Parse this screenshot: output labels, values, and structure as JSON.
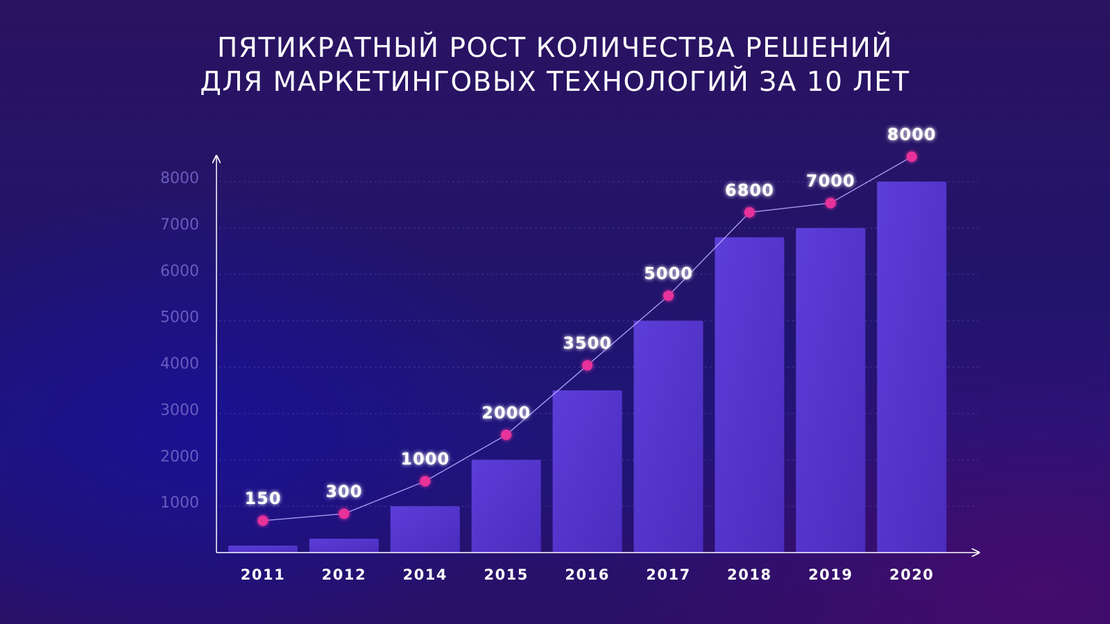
{
  "title_lines": [
    "ПЯТИКРАТНЫЙ РОСТ КОЛИЧЕСТВА РЕШЕНИЙ",
    "ДЛЯ МАРКЕТИНГОВЫХ ТЕХНОЛОГИЙ ЗА 10 ЛЕТ"
  ],
  "colors": {
    "bar": "#5a3ad4",
    "bar_dark": "#4a2cbf",
    "line": "#b6a8ff",
    "marker": "#e8329a",
    "axis": "#ffffff"
  },
  "chart_data": {
    "type": "bar",
    "title": "ПЯТИКРАТНЫЙ РОСТ КОЛИЧЕСТВА РЕШЕНИЙ ДЛЯ МАРКЕТИНГОВЫХ ТЕХНОЛОГИЙ ЗА 10 ЛЕТ",
    "categories": [
      "2011",
      "2012",
      "2014",
      "2015",
      "2016",
      "2017",
      "2018",
      "2019",
      "2020"
    ],
    "values": [
      150,
      300,
      1000,
      2000,
      3500,
      5000,
      6800,
      7000,
      8000
    ],
    "data_labels": [
      "150",
      "300",
      "1000",
      "2000",
      "3500",
      "5000",
      "6800",
      "7000",
      "8000"
    ],
    "yticks": [
      1000,
      2000,
      3000,
      4000,
      5000,
      6000,
      7000,
      8000
    ],
    "ylim": [
      0,
      8000
    ],
    "grid": true,
    "overlay": "line with markers above bars",
    "xlabel": "",
    "ylabel": ""
  }
}
